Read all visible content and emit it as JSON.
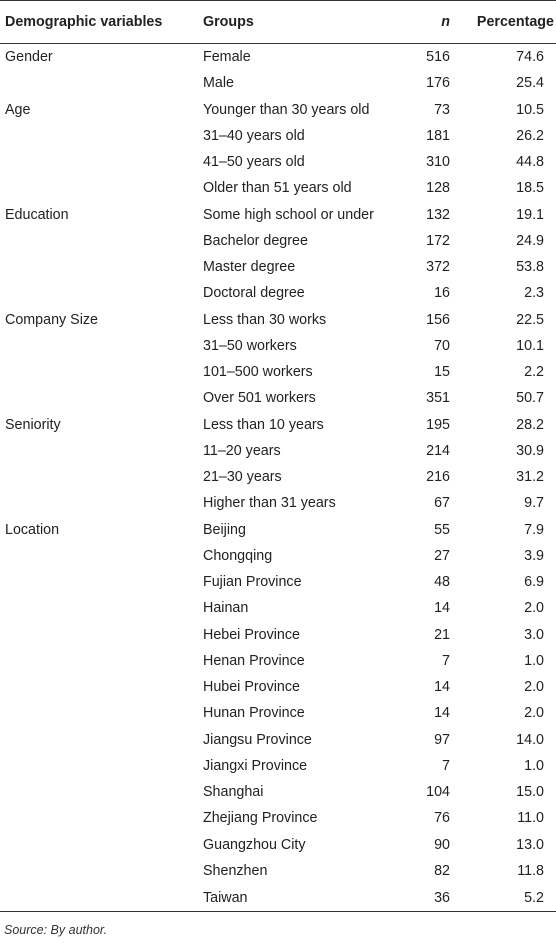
{
  "headers": {
    "variable": "Demographic variables",
    "group": "Groups",
    "n": "n",
    "percentage": "Percentage"
  },
  "rows": [
    {
      "variable": "Gender",
      "group": "Female",
      "n": "516",
      "pct": "74.6"
    },
    {
      "variable": "",
      "group": "Male",
      "n": "176",
      "pct": "25.4"
    },
    {
      "variable": "Age",
      "group": "Younger than 30 years old",
      "n": "73",
      "pct": "10.5"
    },
    {
      "variable": "",
      "group": "31–40 years old",
      "n": "181",
      "pct": "26.2"
    },
    {
      "variable": "",
      "group": "41–50 years old",
      "n": "310",
      "pct": "44.8"
    },
    {
      "variable": "",
      "group": "Older than 51 years old",
      "n": "128",
      "pct": "18.5"
    },
    {
      "variable": "Education",
      "group": "Some high school or under",
      "n": "132",
      "pct": "19.1"
    },
    {
      "variable": "",
      "group": "Bachelor degree",
      "n": "172",
      "pct": "24.9"
    },
    {
      "variable": "",
      "group": "Master degree",
      "n": "372",
      "pct": "53.8"
    },
    {
      "variable": "",
      "group": "Doctoral degree",
      "n": "16",
      "pct": "2.3"
    },
    {
      "variable": "Company Size",
      "group": "Less than 30 works",
      "n": "156",
      "pct": "22.5"
    },
    {
      "variable": "",
      "group": "31–50 workers",
      "n": "70",
      "pct": "10.1"
    },
    {
      "variable": "",
      "group": "101–500 workers",
      "n": "15",
      "pct": "2.2"
    },
    {
      "variable": "",
      "group": "Over 501 workers",
      "n": "351",
      "pct": "50.7"
    },
    {
      "variable": "Seniority",
      "group": "Less than 10 years",
      "n": "195",
      "pct": "28.2"
    },
    {
      "variable": "",
      "group": "11–20 years",
      "n": "214",
      "pct": "30.9"
    },
    {
      "variable": "",
      "group": "21–30 years",
      "n": "216",
      "pct": "31.2"
    },
    {
      "variable": "",
      "group": "Higher than 31 years",
      "n": "67",
      "pct": "9.7"
    },
    {
      "variable": "Location",
      "group": "Beijing",
      "n": "55",
      "pct": "7.9"
    },
    {
      "variable": "",
      "group": "Chongqing",
      "n": "27",
      "pct": "3.9"
    },
    {
      "variable": "",
      "group": "Fujian Province",
      "n": "48",
      "pct": "6.9"
    },
    {
      "variable": "",
      "group": "Hainan",
      "n": "14",
      "pct": "2.0"
    },
    {
      "variable": "",
      "group": "Hebei Province",
      "n": "21",
      "pct": "3.0"
    },
    {
      "variable": "",
      "group": "Henan Province",
      "n": "7",
      "pct": "1.0"
    },
    {
      "variable": "",
      "group": "Hubei Province",
      "n": "14",
      "pct": "2.0"
    },
    {
      "variable": "",
      "group": "Hunan Province",
      "n": "14",
      "pct": "2.0"
    },
    {
      "variable": "",
      "group": "Jiangsu Province",
      "n": "97",
      "pct": "14.0"
    },
    {
      "variable": "",
      "group": "Jiangxi Province",
      "n": "7",
      "pct": "1.0"
    },
    {
      "variable": "",
      "group": "Shanghai",
      "n": "104",
      "pct": "15.0"
    },
    {
      "variable": "",
      "group": "Zhejiang Province",
      "n": "76",
      "pct": "11.0"
    },
    {
      "variable": "",
      "group": "Guangzhou City",
      "n": "90",
      "pct": "13.0"
    },
    {
      "variable": "",
      "group": "Shenzhen",
      "n": "82",
      "pct": "11.8"
    },
    {
      "variable": "",
      "group": "Taiwan",
      "n": "36",
      "pct": "5.2"
    }
  ],
  "source": "Source: By author."
}
